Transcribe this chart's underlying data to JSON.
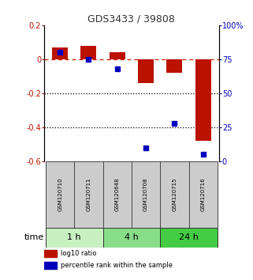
{
  "title": "GDS3433 / 39808",
  "samples": [
    "GSM120710",
    "GSM120711",
    "GSM120648",
    "GSM120708",
    "GSM120715",
    "GSM120716"
  ],
  "log10_ratio": [
    0.07,
    0.08,
    0.04,
    -0.14,
    -0.08,
    -0.48
  ],
  "percentile_rank": [
    80,
    75,
    68,
    10,
    28,
    5
  ],
  "ylim_left": [
    -0.6,
    0.2
  ],
  "ylim_right": [
    0,
    100
  ],
  "yticks_left": [
    -0.6,
    -0.4,
    -0.2,
    0.0,
    0.2
  ],
  "yticks_right": [
    0,
    25,
    50,
    75,
    100
  ],
  "ytick_labels_right": [
    "0",
    "25",
    "50",
    "75",
    "100%"
  ],
  "time_groups": [
    {
      "label": "1 h",
      "indices": [
        0,
        1
      ],
      "color": "#c8f0c0"
    },
    {
      "label": "4 h",
      "indices": [
        2,
        3
      ],
      "color": "#88dd88"
    },
    {
      "label": "24 h",
      "indices": [
        4,
        5
      ],
      "color": "#44cc44"
    }
  ],
  "bar_color_red": "#bb1100",
  "dot_color_blue": "#0000bb",
  "dashed_line_color": "#cc2200",
  "dotted_line_color": "#000000",
  "legend_red_label": "log10 ratio",
  "legend_blue_label": "percentile rank within the sample",
  "time_label": "time",
  "bg_color": "#ffffff",
  "plot_bg": "#ffffff",
  "sample_box_color": "#cccccc",
  "bar_width": 0.55,
  "dot_size": 5,
  "title_fontsize": 9,
  "tick_fontsize": 7,
  "sample_fontsize": 5,
  "time_fontsize": 8,
  "legend_fontsize": 6
}
